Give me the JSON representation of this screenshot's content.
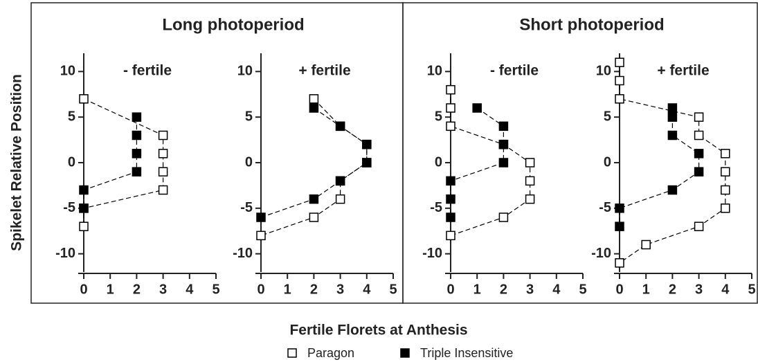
{
  "groups": [
    "Long photoperiod",
    "Short photoperiod"
  ],
  "xlabel": "Fertile Florets at Anthesis",
  "ylabel": "Spikelet Relative Position",
  "legend": [
    "Paragon",
    "Triple Insensitive"
  ],
  "chart_data": [
    {
      "type": "scatter",
      "title": "- fertile",
      "xlim": [
        0,
        5
      ],
      "xticks": [
        0,
        1,
        2,
        3,
        4,
        5
      ],
      "ylim": [
        -12,
        12
      ],
      "yticks": [
        -10,
        -5,
        0,
        5,
        10
      ],
      "series": [
        {
          "marker": "open",
          "color": "#000000",
          "x": [
            0,
            3,
            3,
            3,
            3,
            0,
            0
          ],
          "y": [
            7,
            3,
            1,
            -1,
            -3,
            -5,
            -7
          ]
        },
        {
          "marker": "filled",
          "color": "#000000",
          "x": [
            2,
            2,
            2,
            2,
            0,
            0
          ],
          "y": [
            5,
            3,
            1,
            -1,
            -3,
            -5
          ]
        }
      ]
    },
    {
      "type": "scatter",
      "title": "+ fertile",
      "xlim": [
        0,
        5
      ],
      "xticks": [
        0,
        1,
        2,
        3,
        4,
        5
      ],
      "ylim": [
        -12,
        12
      ],
      "yticks": [
        -10,
        -5,
        0,
        5,
        10
      ],
      "series": [
        {
          "marker": "open",
          "color": "#000000",
          "x": [
            2,
            3,
            4,
            4,
            3,
            3,
            2,
            0
          ],
          "y": [
            7,
            4,
            2,
            0,
            -2,
            -4,
            -6,
            -8
          ]
        },
        {
          "marker": "filled",
          "color": "#000000",
          "x": [
            2,
            3,
            4,
            4,
            3,
            2,
            0
          ],
          "y": [
            6,
            4,
            2,
            0,
            -2,
            -4,
            -6
          ]
        }
      ]
    },
    {
      "type": "scatter",
      "title": "- fertile",
      "xlim": [
        0,
        5
      ],
      "xticks": [
        0,
        1,
        2,
        3,
        4,
        5
      ],
      "ylim": [
        -12,
        12
      ],
      "yticks": [
        -10,
        -5,
        0,
        5,
        10
      ],
      "series": [
        {
          "marker": "open",
          "color": "#000000",
          "x": [
            0,
            0,
            0,
            2,
            3,
            3,
            3,
            2,
            0
          ],
          "y": [
            8,
            6,
            4,
            2,
            0,
            -2,
            -4,
            -6,
            -8
          ]
        },
        {
          "marker": "filled",
          "color": "#000000",
          "x": [
            1,
            2,
            2,
            2,
            0,
            0,
            0
          ],
          "y": [
            6,
            4,
            2,
            0,
            -2,
            -4,
            -6
          ]
        }
      ]
    },
    {
      "type": "scatter",
      "title": "+ fertile",
      "xlim": [
        0,
        5
      ],
      "xticks": [
        0,
        1,
        2,
        3,
        4,
        5
      ],
      "ylim": [
        -12,
        12
      ],
      "yticks": [
        -10,
        -5,
        0,
        5,
        10
      ],
      "series": [
        {
          "marker": "open",
          "color": "#000000",
          "x": [
            0,
            0,
            0,
            3,
            3,
            4,
            4,
            4,
            4,
            3,
            1,
            0
          ],
          "y": [
            11,
            9,
            7,
            5,
            3,
            1,
            -1,
            -3,
            -5,
            -7,
            -9,
            -11
          ]
        },
        {
          "marker": "filled",
          "color": "#000000",
          "x": [
            2,
            2,
            2,
            3,
            3,
            2,
            0,
            0
          ],
          "y": [
            6,
            5,
            3,
            1,
            -1,
            -3,
            -5,
            -7
          ]
        }
      ]
    }
  ]
}
